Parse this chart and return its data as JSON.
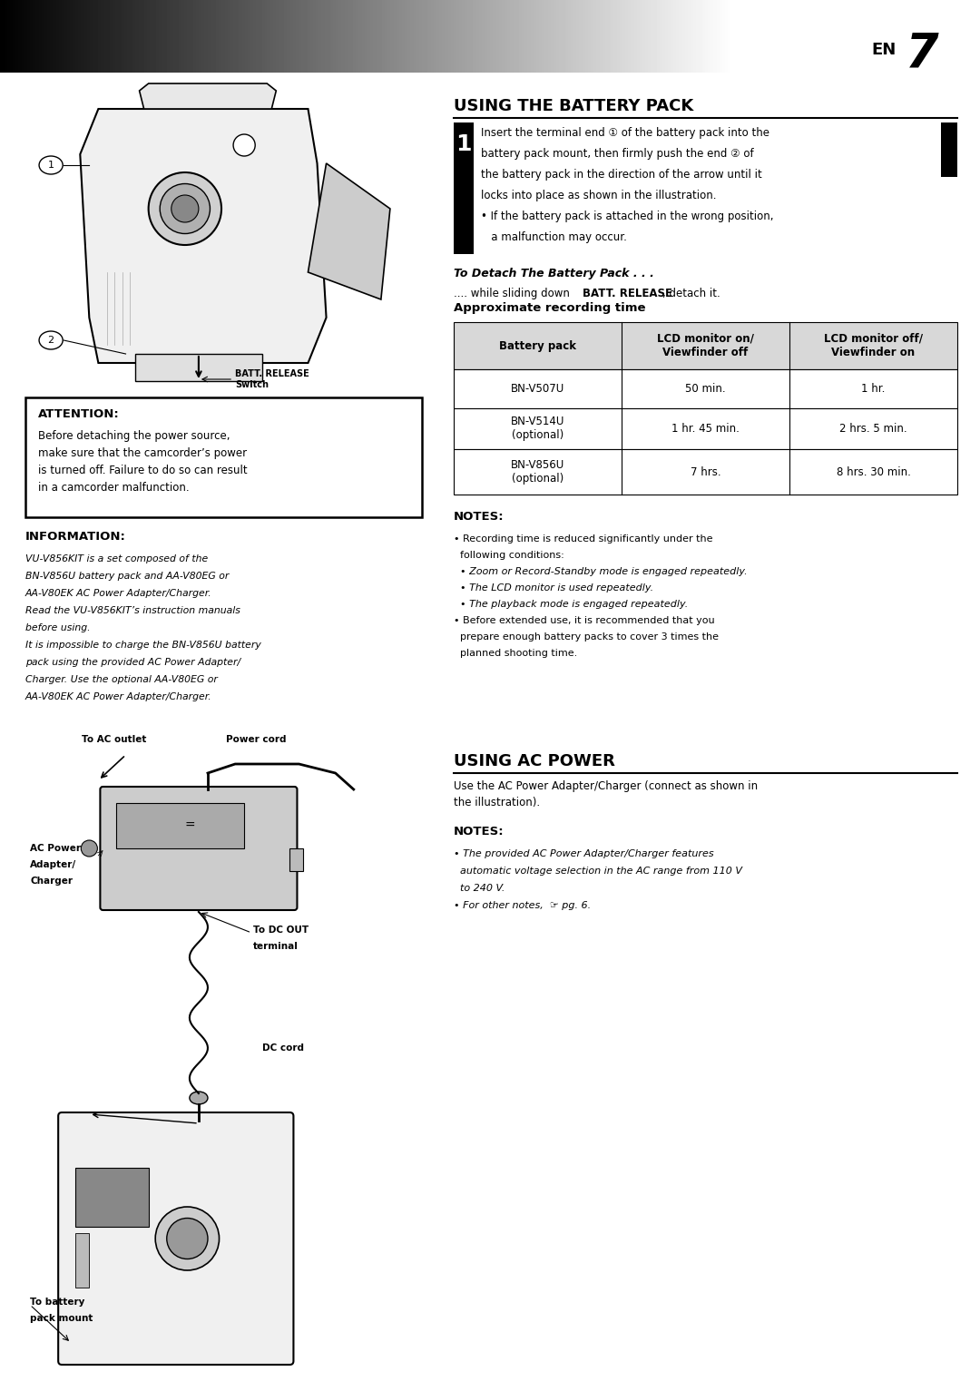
{
  "bg_color": "#ffffff",
  "page_width": 10.8,
  "page_height": 15.33,
  "section1_title": "USING THE BATTERY PACK",
  "section2_title": "USING AC POWER",
  "step1_text_lines": [
    "Insert the terminal end ① of the battery pack into the",
    "battery pack mount, then firmly push the end ② of",
    "the battery pack in the direction of the arrow until it",
    "locks into place as shown in the illustration.",
    "• If the battery pack is attached in the wrong position,",
    "   a malfunction may occur."
  ],
  "detach_title": "To Detach The Battery Pack . . .",
  "detach_body1": ".... while sliding down ",
  "detach_bold": "BATT. RELEASE",
  "detach_body2": ", detach it.",
  "approx_title": "Approximate recording time",
  "table_headers": [
    "Battery pack",
    "LCD monitor on/\nViewfinder off",
    "LCD monitor off/\nViewfinder on"
  ],
  "table_rows": [
    [
      "BN-V507U",
      "50 min.",
      "1 hr."
    ],
    [
      "BN-V514U\n(optional)",
      "1 hr. 45 min.",
      "2 hrs. 5 min."
    ],
    [
      "BN-V856U\n(optional)",
      "7 hrs.",
      "8 hrs. 30 min."
    ]
  ],
  "notes1_title": "NOTES:",
  "notes1_lines": [
    [
      "• Recording time is reduced significantly under the",
      false,
      false
    ],
    [
      "  following conditions:",
      false,
      false
    ],
    [
      "  • Zoom or Record-Standby mode is engaged repeatedly.",
      false,
      true
    ],
    [
      "  • The LCD monitor is used repeatedly.",
      false,
      true
    ],
    [
      "  • The playback mode is engaged repeatedly.",
      false,
      true
    ],
    [
      "• Before extended use, it is recommended that you",
      false,
      false
    ],
    [
      "  prepare enough battery packs to cover 3 times the",
      false,
      false
    ],
    [
      "  planned shooting time.",
      false,
      false
    ]
  ],
  "attention_title": "ATTENTION:",
  "attention_body": "Before detaching the power source,\nmake sure that the camcorder’s power\nis turned off. Failure to do so can result\nin a camcorder malfunction.",
  "info_title": "INFORMATION:",
  "info_body_lines": [
    "VU-V856KIT is a set composed of the",
    "BN-V856U battery pack and AA-V80EG or",
    "AA-V80EK AC Power Adapter/Charger.",
    "Read the VU-V856KIT’s instruction manuals",
    "before using.",
    "It is impossible to charge the BN-V856U battery",
    "pack using the provided AC Power Adapter/",
    "Charger. Use the optional AA-V80EG or",
    "AA-V80EK AC Power Adapter/Charger."
  ],
  "ac_body": "Use the AC Power Adapter/Charger (connect as shown in\nthe illustration).",
  "notes2_title": "NOTES:",
  "notes2_lines": [
    [
      "• The provided AC Power Adapter/Charger features",
      false,
      true
    ],
    [
      "  automatic voltage selection in the AC range from 110 V",
      false,
      true
    ],
    [
      "  to 240 V.",
      false,
      true
    ],
    [
      "• For other notes,  ☞ pg. 6.",
      false,
      true
    ]
  ]
}
